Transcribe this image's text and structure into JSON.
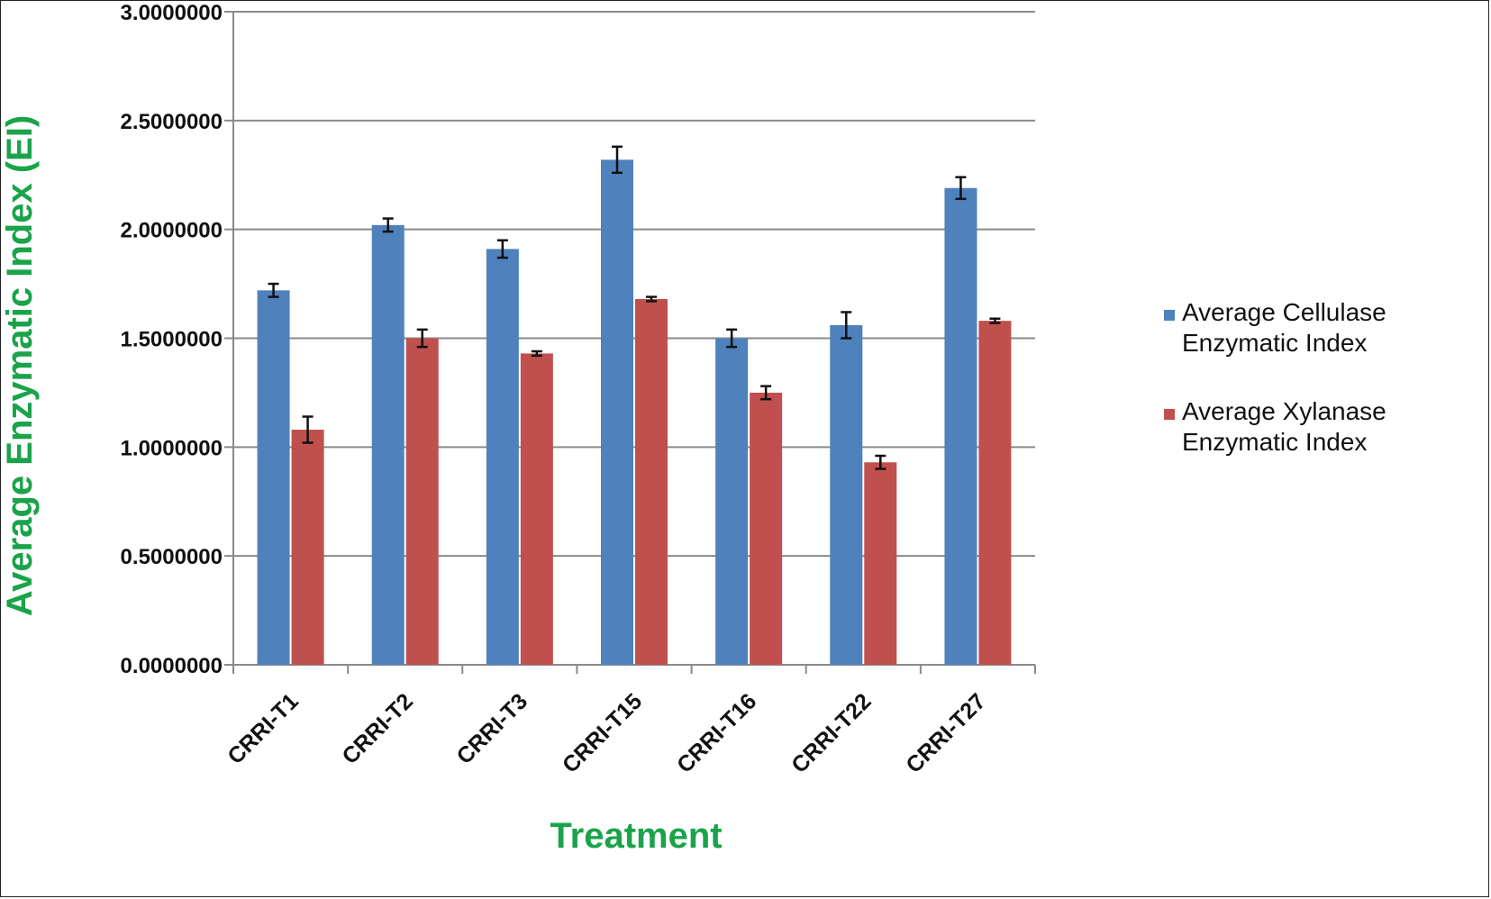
{
  "chart_data": {
    "type": "bar",
    "title": "",
    "xlabel": "Treatment",
    "ylabel": "Average Enzymatic Index (EI)",
    "ylim": [
      0,
      3
    ],
    "yticks": [
      "0.0000000",
      "0.5000000",
      "1.0000000",
      "1.5000000",
      "2.0000000",
      "2.5000000",
      "3.0000000"
    ],
    "grid": "horizontal",
    "legend_position": "right",
    "categories": [
      "CRRI-T1",
      "CRRI-T2",
      "CRRI-T3",
      "CRRI-T15",
      "CRRI-T16",
      "CRRI-T22",
      "CRRI-T27"
    ],
    "series": [
      {
        "name_lines": [
          "Average Cellulase",
          "Enzymatic Index"
        ],
        "color": "#4f81bd",
        "values": [
          1.72,
          2.02,
          1.91,
          2.32,
          1.5,
          1.56,
          2.19
        ],
        "errors": [
          0.03,
          0.03,
          0.04,
          0.06,
          0.04,
          0.06,
          0.05
        ]
      },
      {
        "name_lines": [
          "Average Xylanase",
          "Enzymatic Index"
        ],
        "color": "#c0504d",
        "values": [
          1.08,
          1.5,
          1.43,
          1.68,
          1.25,
          0.93,
          1.58
        ],
        "errors": [
          0.06,
          0.04,
          0.01,
          0.01,
          0.03,
          0.03,
          0.01
        ]
      }
    ]
  }
}
